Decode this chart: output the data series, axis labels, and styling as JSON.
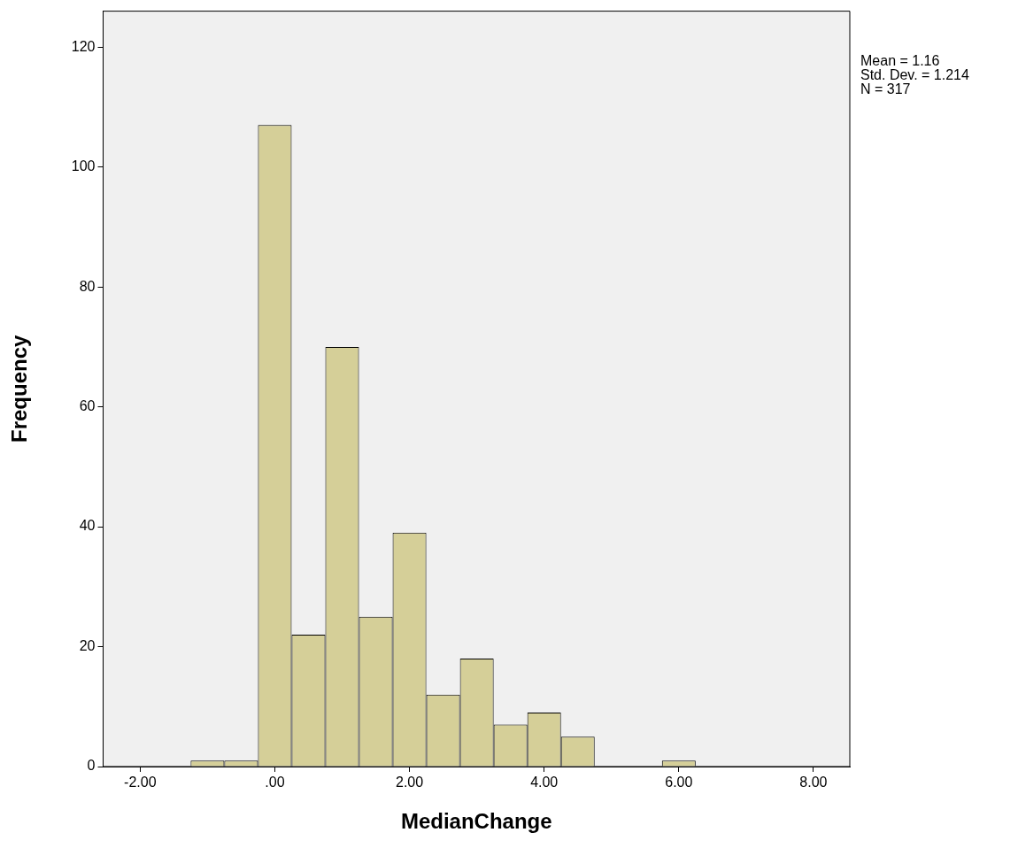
{
  "chart_data": {
    "type": "histogram",
    "xlabel": "MedianChange",
    "ylabel": "Frequency",
    "bins": [
      -1.25,
      -0.75,
      -0.25,
      0.25,
      0.75,
      1.25,
      1.75,
      2.25,
      2.75,
      3.25,
      3.75,
      4.25,
      4.75,
      5.75,
      6.25
    ],
    "values": [
      1,
      1,
      107,
      22,
      70,
      25,
      39,
      12,
      18,
      7,
      9,
      5,
      0,
      1
    ],
    "color": "#d5cf98",
    "xlim": [
      -2.55,
      8.54
    ],
    "ylim": [
      0,
      126
    ],
    "xticks": [
      {
        "value": -2,
        "label": "-2.00"
      },
      {
        "value": 0,
        "label": ".00"
      },
      {
        "value": 2,
        "label": "2.00"
      },
      {
        "value": 4,
        "label": "4.00"
      },
      {
        "value": 6,
        "label": "6.00"
      },
      {
        "value": 8,
        "label": "8.00"
      }
    ],
    "yticks": [
      0,
      20,
      40,
      60,
      80,
      100,
      120
    ],
    "grid": false,
    "legend": false,
    "annotations": [
      "Mean = 1.16",
      "Std. Dev. = 1.214",
      "N = 317"
    ]
  }
}
